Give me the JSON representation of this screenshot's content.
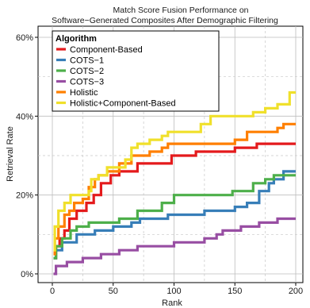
{
  "chart_data": {
    "type": "line",
    "title": "Match Score Fusion Performance on",
    "subtitle": "Software−Generated Composites After Demographic Filtering",
    "xlabel": "Rank",
    "ylabel": "Retrieval Rate",
    "xlim": [
      0,
      200
    ],
    "ylim": [
      0,
      60
    ],
    "x_ticks": [
      0,
      50,
      100,
      150,
      200
    ],
    "y_ticks": [
      0,
      20,
      40,
      60
    ],
    "x_tick_labels": [
      "0",
      "50",
      "100",
      "150",
      "200"
    ],
    "y_tick_labels": [
      "0%",
      "20%",
      "40%",
      "60%"
    ],
    "grid": true,
    "legend": {
      "title": "Algorithm",
      "placement": "top-left"
    },
    "series": [
      {
        "name": "Component-Based",
        "color": "#e41a1c",
        "step_points": [
          [
            1,
            4
          ],
          [
            3,
            7
          ],
          [
            6,
            9
          ],
          [
            10,
            11
          ],
          [
            14,
            14
          ],
          [
            20,
            16
          ],
          [
            28,
            18
          ],
          [
            34,
            20
          ],
          [
            40,
            23
          ],
          [
            48,
            25
          ],
          [
            55,
            26
          ],
          [
            70,
            28
          ],
          [
            98,
            30
          ],
          [
            118,
            31
          ],
          [
            150,
            32
          ],
          [
            168,
            33
          ],
          [
            200,
            33
          ]
        ]
      },
      {
        "name": "COTS−1",
        "color": "#377eb8",
        "step_points": [
          [
            1,
            4
          ],
          [
            3,
            6
          ],
          [
            8,
            8
          ],
          [
            20,
            10
          ],
          [
            35,
            11
          ],
          [
            50,
            12
          ],
          [
            65,
            13
          ],
          [
            72,
            14
          ],
          [
            95,
            15
          ],
          [
            125,
            16
          ],
          [
            150,
            17
          ],
          [
            160,
            18
          ],
          [
            170,
            21
          ],
          [
            178,
            23
          ],
          [
            182,
            24
          ],
          [
            190,
            26
          ],
          [
            200,
            26
          ]
        ]
      },
      {
        "name": "COTS−2",
        "color": "#4daf4a",
        "step_points": [
          [
            1,
            4
          ],
          [
            3,
            7
          ],
          [
            8,
            9
          ],
          [
            15,
            11
          ],
          [
            20,
            12
          ],
          [
            30,
            13
          ],
          [
            40,
            13
          ],
          [
            55,
            14
          ],
          [
            70,
            16
          ],
          [
            90,
            18
          ],
          [
            100,
            20
          ],
          [
            125,
            20
          ],
          [
            148,
            21
          ],
          [
            165,
            23
          ],
          [
            175,
            24
          ],
          [
            182,
            25
          ],
          [
            200,
            25
          ]
        ]
      },
      {
        "name": "COTS−3",
        "color": "#984ea3",
        "step_points": [
          [
            1,
            0
          ],
          [
            3,
            2
          ],
          [
            12,
            3
          ],
          [
            25,
            4
          ],
          [
            40,
            5
          ],
          [
            55,
            6
          ],
          [
            70,
            7
          ],
          [
            100,
            8
          ],
          [
            125,
            9
          ],
          [
            135,
            10
          ],
          [
            140,
            11
          ],
          [
            155,
            12
          ],
          [
            170,
            13
          ],
          [
            185,
            14
          ],
          [
            200,
            14
          ]
        ]
      },
      {
        "name": "Holistic",
        "color": "#ff7f00",
        "step_points": [
          [
            1,
            5
          ],
          [
            2,
            9
          ],
          [
            5,
            12
          ],
          [
            10,
            15
          ],
          [
            14,
            16
          ],
          [
            18,
            18
          ],
          [
            25,
            19
          ],
          [
            30,
            22
          ],
          [
            35,
            24
          ],
          [
            38,
            25
          ],
          [
            45,
            26
          ],
          [
            55,
            28
          ],
          [
            65,
            30
          ],
          [
            80,
            31
          ],
          [
            90,
            32
          ],
          [
            95,
            33
          ],
          [
            135,
            33
          ],
          [
            150,
            34
          ],
          [
            160,
            36
          ],
          [
            185,
            37
          ],
          [
            190,
            38
          ],
          [
            200,
            38
          ]
        ]
      },
      {
        "name": "Holistic+Component-Based",
        "color": "#f0e02b",
        "step_points": [
          [
            1,
            6
          ],
          [
            2,
            12
          ],
          [
            5,
            16
          ],
          [
            10,
            18
          ],
          [
            15,
            20
          ],
          [
            30,
            21
          ],
          [
            32,
            24
          ],
          [
            38,
            25
          ],
          [
            45,
            27
          ],
          [
            60,
            29
          ],
          [
            65,
            32
          ],
          [
            70,
            33
          ],
          [
            80,
            34
          ],
          [
            90,
            35
          ],
          [
            95,
            36
          ],
          [
            115,
            36
          ],
          [
            122,
            38
          ],
          [
            130,
            40
          ],
          [
            155,
            40
          ],
          [
            165,
            41
          ],
          [
            175,
            42
          ],
          [
            185,
            43
          ],
          [
            195,
            46
          ],
          [
            200,
            46
          ]
        ]
      }
    ]
  }
}
